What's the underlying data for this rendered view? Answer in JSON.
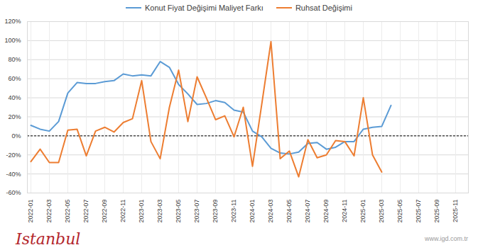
{
  "chart_data": {
    "type": "line",
    "categories": [
      "2022-01",
      null,
      "2022-03",
      null,
      "2022-05",
      null,
      "2022-07",
      null,
      "2022-09",
      null,
      "2022-11",
      null,
      "2023-01",
      null,
      "2023-03",
      null,
      "2023-05",
      null,
      "2023-07",
      null,
      "2023-09",
      null,
      "2023-11",
      null,
      "2024-01",
      null,
      "2024-03",
      null,
      "2024-05",
      null,
      "2024-07",
      null,
      "2024-09",
      null,
      "2024-11",
      null,
      "2025-01",
      null,
      "2025-03",
      null,
      "2025-05",
      null,
      "2025-07",
      null,
      "2025-09",
      null,
      "2025-11",
      null
    ],
    "series": [
      {
        "name": "Konut Fiyat Değişimi Maliyet Farkı",
        "color": "#5b9bd5",
        "values": [
          11,
          7,
          5,
          15,
          45,
          56,
          55,
          55,
          57,
          58,
          65,
          63,
          64,
          63,
          78,
          72,
          54,
          44,
          33,
          34,
          37,
          35,
          27,
          25,
          5,
          -1,
          -13,
          -18,
          -19,
          -17,
          -8,
          -7,
          -14,
          -12,
          -6,
          -6,
          7,
          9,
          10,
          32,
          null,
          null,
          null,
          null,
          null,
          null,
          null,
          null
        ]
      },
      {
        "name": "Ruhsat Değişimi",
        "color": "#ed7d31",
        "values": [
          -27,
          -14,
          -28,
          -28,
          6,
          7,
          -21,
          5,
          9,
          4,
          14,
          18,
          58,
          -6,
          -24,
          30,
          69,
          15,
          62,
          40,
          17,
          21,
          -1,
          30,
          -32,
          33,
          99,
          -24,
          -16,
          -43,
          -4,
          -23,
          -20,
          -5,
          -6,
          -21,
          40,
          -20,
          -38,
          null,
          null,
          null,
          null,
          null,
          null,
          null,
          null,
          null
        ]
      }
    ],
    "ylim": [
      -60,
      120
    ],
    "yticks": [
      {
        "value": -60,
        "label": "-60%"
      },
      {
        "value": -40,
        "label": "-40%"
      },
      {
        "value": -20,
        "label": "-20%"
      },
      {
        "value": 0,
        "label": "0%"
      },
      {
        "value": 20,
        "label": "20%"
      },
      {
        "value": 40,
        "label": "40%"
      },
      {
        "value": 60,
        "label": "60%"
      },
      {
        "value": 80,
        "label": "80%"
      },
      {
        "value": 100,
        "label": "100%"
      },
      {
        "value": 120,
        "label": "120%"
      }
    ],
    "grid": true,
    "legend": "top",
    "annotations": [
      "Istanbul",
      "www.igd.com.tr"
    ]
  }
}
